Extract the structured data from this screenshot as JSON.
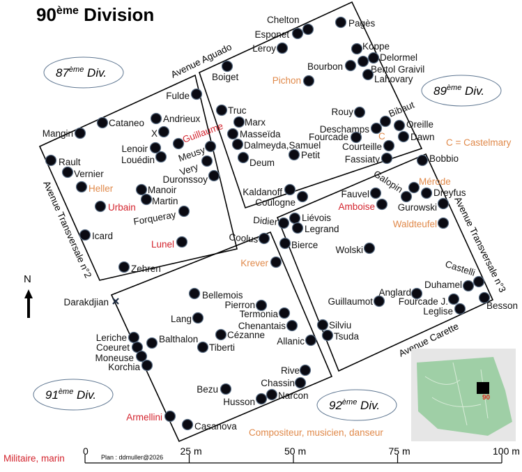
{
  "title": {
    "main": "90",
    "sup": "ème",
    "rest": " Division"
  },
  "colors": {
    "default": "#111111",
    "military": "#d3232d",
    "artist": "#e0894a",
    "minimap_green": "#9fcfa6",
    "minimap_marker": "#d62a1a"
  },
  "neighbors": [
    {
      "num": "87",
      "sup": "ème",
      "label": " Div."
    },
    {
      "num": "89",
      "sup": "ème",
      "label": " Div."
    },
    {
      "num": "91",
      "sup": "ème",
      "label": " Div."
    },
    {
      "num": "92",
      "sup": "ème",
      "label": " Div."
    }
  ],
  "streets": [
    "Avenue Aguado",
    "Avenue Transversale n°2",
    "Avenue Transversale n°3",
    "Avenue Carette"
  ],
  "legend": {
    "castelmary": "C = Castelmary",
    "artist": "Compositeur, musicien, danseur",
    "military": "Militaire, marin",
    "c_marker": "C",
    "credit": "Plan : ddmuller@2026"
  },
  "north": {
    "label": "N",
    "icon": "north-arrow-icon"
  },
  "scale": {
    "ticks": [
      "0",
      "25 m",
      "50 m",
      "75 m",
      "100 m"
    ]
  },
  "minimap": {
    "label": "90"
  },
  "graves": [
    {
      "name": "Chelton",
      "type": "default"
    },
    {
      "name": "Esponet",
      "type": "default"
    },
    {
      "name": "Pagès",
      "type": "default"
    },
    {
      "name": "Leroy",
      "type": "default"
    },
    {
      "name": "Koppe",
      "type": "default"
    },
    {
      "name": "Delormel",
      "type": "default"
    },
    {
      "name": "Bertol Graivil",
      "type": "default"
    },
    {
      "name": "Bourbon",
      "type": "default"
    },
    {
      "name": "Lahovary",
      "type": "default"
    },
    {
      "name": "Boiget",
      "type": "default"
    },
    {
      "name": "Pichon",
      "type": "artist"
    },
    {
      "name": "Truc",
      "type": "default"
    },
    {
      "name": "Marx",
      "type": "default"
    },
    {
      "name": "Masseïda",
      "type": "default"
    },
    {
      "name": "Dalmeyda,Samuel",
      "type": "default"
    },
    {
      "name": "Deum",
      "type": "default"
    },
    {
      "name": "Petit",
      "type": "default"
    },
    {
      "name": "Rouy",
      "type": "default"
    },
    {
      "name": "Bibaut",
      "type": "default"
    },
    {
      "name": "Deschamps",
      "type": "default"
    },
    {
      "name": "Fourcade",
      "type": "default"
    },
    {
      "name": "Oreille",
      "type": "default"
    },
    {
      "name": "Dawn",
      "type": "default"
    },
    {
      "name": "Courteille",
      "type": "default"
    },
    {
      "name": "Fassiaty",
      "type": "default"
    },
    {
      "name": "Kaldanoff",
      "type": "default"
    },
    {
      "name": "Coulogne",
      "type": "default"
    },
    {
      "name": "Fulde",
      "type": "default"
    },
    {
      "name": "Andrieux",
      "type": "default"
    },
    {
      "name": "Cataneo",
      "type": "default"
    },
    {
      "name": "X",
      "type": "default"
    },
    {
      "name": "Mangin",
      "type": "default"
    },
    {
      "name": "Guillaume",
      "type": "military"
    },
    {
      "name": "Lenoir",
      "type": "default"
    },
    {
      "name": "Louédin",
      "type": "default"
    },
    {
      "name": "Meusy",
      "type": "default"
    },
    {
      "name": "Very",
      "type": "default"
    },
    {
      "name": "Duronssoy",
      "type": "default"
    },
    {
      "name": "Rault",
      "type": "default"
    },
    {
      "name": "Vernier",
      "type": "default"
    },
    {
      "name": "Heller",
      "type": "artist"
    },
    {
      "name": "Manoir",
      "type": "default"
    },
    {
      "name": "Martin",
      "type": "default"
    },
    {
      "name": "Urbain",
      "type": "military"
    },
    {
      "name": "Forqueray",
      "type": "default"
    },
    {
      "name": "Icard",
      "type": "default"
    },
    {
      "name": "Lunel",
      "type": "military"
    },
    {
      "name": "Zehren",
      "type": "default"
    },
    {
      "name": "Bobbio",
      "type": "default"
    },
    {
      "name": "Galopin",
      "type": "default"
    },
    {
      "name": "Mérode",
      "type": "artist"
    },
    {
      "name": "Dreyfus",
      "type": "default"
    },
    {
      "name": "Gurowski",
      "type": "default"
    },
    {
      "name": "Fauvel",
      "type": "default"
    },
    {
      "name": "Amboise",
      "type": "military"
    },
    {
      "name": "Waldteufel",
      "type": "artist"
    },
    {
      "name": "Didier",
      "type": "default"
    },
    {
      "name": "Liévois",
      "type": "default"
    },
    {
      "name": "Legrand",
      "type": "default"
    },
    {
      "name": "Bierce",
      "type": "default"
    },
    {
      "name": "Wolski",
      "type": "default"
    },
    {
      "name": "Castelli",
      "type": "default"
    },
    {
      "name": "Duhamel",
      "type": "default"
    },
    {
      "name": "Anglard",
      "type": "default"
    },
    {
      "name": "Guillaumot",
      "type": "default"
    },
    {
      "name": "Fourcade J.",
      "type": "default"
    },
    {
      "name": "Leglise",
      "type": "default"
    },
    {
      "name": "Besson",
      "type": "default"
    },
    {
      "name": "Silviu",
      "type": "default"
    },
    {
      "name": "Tsuda",
      "type": "default"
    },
    {
      "name": "Coolus",
      "type": "default"
    },
    {
      "name": "Krever",
      "type": "artist"
    },
    {
      "name": "Darakdjian",
      "type": "default"
    },
    {
      "name": "Bellemois",
      "type": "default"
    },
    {
      "name": "Pierron",
      "type": "default"
    },
    {
      "name": "Termonia",
      "type": "default"
    },
    {
      "name": "Lang",
      "type": "default"
    },
    {
      "name": "Chenantais",
      "type": "default"
    },
    {
      "name": "Cézanne",
      "type": "default"
    },
    {
      "name": "Allanic",
      "type": "default"
    },
    {
      "name": "Balthalon",
      "type": "default"
    },
    {
      "name": "Tiberti",
      "type": "default"
    },
    {
      "name": "Leriche",
      "type": "default"
    },
    {
      "name": "Coeuret",
      "type": "default"
    },
    {
      "name": "Moneuse",
      "type": "default"
    },
    {
      "name": "Korchia",
      "type": "default"
    },
    {
      "name": "Rive",
      "type": "default"
    },
    {
      "name": "Chassin",
      "type": "default"
    },
    {
      "name": "Bezu",
      "type": "default"
    },
    {
      "name": "Narcon",
      "type": "default"
    },
    {
      "name": "Husson",
      "type": "default"
    },
    {
      "name": "Armellini",
      "type": "military"
    },
    {
      "name": "Casanova",
      "type": "default"
    }
  ]
}
